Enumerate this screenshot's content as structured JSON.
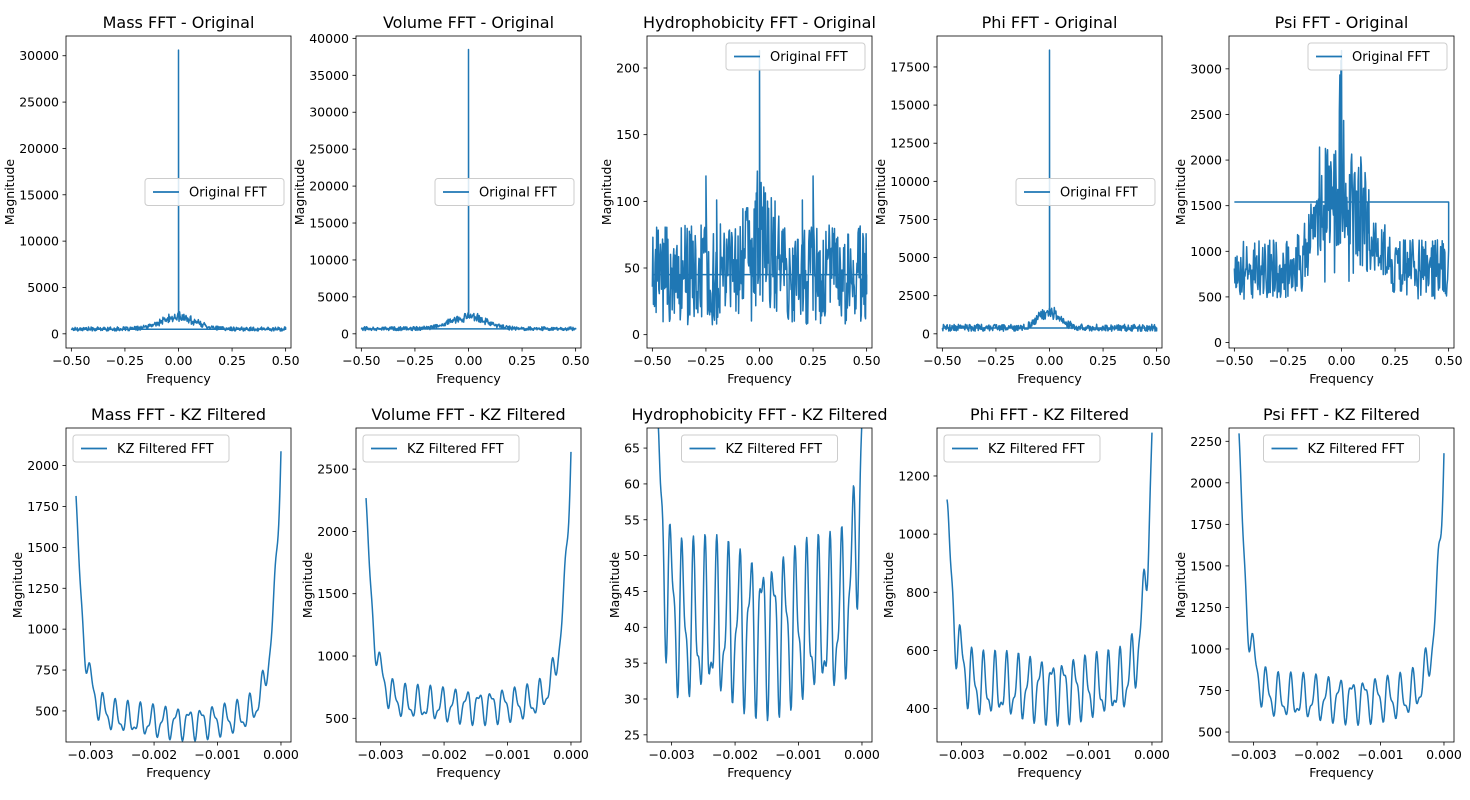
{
  "chart_data": [
    {
      "type": "line",
      "title": "Mass FFT - Original",
      "xlabel": "Frequency",
      "ylabel": "Magnitude",
      "xlim": [
        -0.525,
        0.525
      ],
      "ylim": [
        -1530,
        32130
      ],
      "xticks": [
        -0.5,
        -0.25,
        0.0,
        0.25,
        0.5
      ],
      "xtick_labels": [
        "−0.50",
        "−0.25",
        "0.00",
        "0.25",
        "0.50"
      ],
      "yticks": [
        0,
        5000,
        10000,
        15000,
        20000,
        25000,
        30000
      ],
      "ytick_labels": [
        "0",
        "5000",
        "10000",
        "15000",
        "20000",
        "25000",
        "30000"
      ],
      "legend": {
        "entries": [
          "Original FFT"
        ],
        "position": "center-right"
      },
      "series": [
        {
          "name": "Original FFT",
          "color": "#1f77b4",
          "generator": "fft-spike",
          "params": {
            "dc": 30600,
            "base": 520,
            "noise": 220,
            "bumpAmp": 1700,
            "bumpWidth": 0.08,
            "spikes": []
          }
        }
      ]
    },
    {
      "type": "line",
      "title": "Volume FFT - Original",
      "xlabel": "Frequency",
      "ylabel": "Magnitude",
      "xlim": [
        -0.525,
        0.525
      ],
      "ylim": [
        -1920,
        40320
      ],
      "xticks": [
        -0.5,
        -0.25,
        0.0,
        0.25,
        0.5
      ],
      "xtick_labels": [
        "−0.50",
        "−0.25",
        "0.00",
        "0.25",
        "0.50"
      ],
      "yticks": [
        0,
        5000,
        10000,
        15000,
        20000,
        25000,
        30000,
        35000,
        40000
      ],
      "ytick_labels": [
        "0",
        "5000",
        "10000",
        "15000",
        "20000",
        "25000",
        "30000",
        "35000",
        "40000"
      ],
      "legend": {
        "entries": [
          "Original FFT"
        ],
        "position": "center-right"
      },
      "series": [
        {
          "name": "Original FFT",
          "color": "#1f77b4",
          "generator": "fft-spike",
          "params": {
            "dc": 38500,
            "base": 700,
            "noise": 260,
            "bumpAmp": 2200,
            "bumpWidth": 0.08,
            "spikes": []
          }
        }
      ]
    },
    {
      "type": "line",
      "title": "Hydrophobicity FFT - Original",
      "xlabel": "Frequency",
      "ylabel": "Magnitude",
      "xlim": [
        -0.525,
        0.525
      ],
      "ylim": [
        -10,
        224
      ],
      "xticks": [
        -0.5,
        -0.25,
        0.0,
        0.25,
        0.5
      ],
      "xtick_labels": [
        "−0.50",
        "−0.25",
        "0.00",
        "0.25",
        "0.50"
      ],
      "yticks": [
        0,
        50,
        100,
        150,
        200
      ],
      "ytick_labels": [
        "0",
        "50",
        "100",
        "150",
        "200"
      ],
      "legend": {
        "entries": [
          "Original FFT"
        ],
        "position": "upper right"
      },
      "series": [
        {
          "name": "Original FFT",
          "color": "#1f77b4",
          "generator": "fft-noisy",
          "params": {
            "dc": 213,
            "mean": 45,
            "spread": 38,
            "min": 5,
            "max": 120,
            "bumpAmp": 30,
            "bumpWidth": 0.06,
            "spikes": [
              [
                -0.25,
                119
              ],
              [
                0.25,
                119
              ],
              [
                -0.2,
                101
              ],
              [
                0.2,
                101
              ]
            ],
            "closeLevel": 45
          }
        }
      ]
    },
    {
      "type": "line",
      "title": "Phi FFT - Original",
      "xlabel": "Frequency",
      "ylabel": "Magnitude",
      "xlim": [
        -0.525,
        0.525
      ],
      "ylim": [
        -930,
        19530
      ],
      "xticks": [
        -0.5,
        -0.25,
        0.0,
        0.25,
        0.5
      ],
      "xtick_labels": [
        "−0.50",
        "−0.25",
        "0.00",
        "0.25",
        "0.50"
      ],
      "yticks": [
        0,
        2500,
        5000,
        7500,
        10000,
        12500,
        15000,
        17500
      ],
      "ytick_labels": [
        "0",
        "2500",
        "5000",
        "7500",
        "10000",
        "12500",
        "15000",
        "17500"
      ],
      "legend": {
        "entries": [
          "Original FFT"
        ],
        "position": "center-right"
      },
      "series": [
        {
          "name": "Original FFT",
          "color": "#1f77b4",
          "generator": "fft-spike",
          "params": {
            "dc": 18600,
            "base": 400,
            "noise": 230,
            "bumpAmp": 1400,
            "bumpWidth": 0.05,
            "spikes": []
          }
        }
      ]
    },
    {
      "type": "line",
      "title": "Psi FFT - Original",
      "xlabel": "Frequency",
      "ylabel": "Magnitude",
      "xlim": [
        -0.525,
        0.525
      ],
      "ylim": [
        -60,
        3360
      ],
      "xticks": [
        -0.5,
        -0.25,
        0.0,
        0.25,
        0.5
      ],
      "xtick_labels": [
        "−0.50",
        "−0.25",
        "0.00",
        "0.25",
        "0.50"
      ],
      "yticks": [
        0,
        500,
        1000,
        1500,
        2000,
        2500,
        3000
      ],
      "ytick_labels": [
        "0",
        "500",
        "1000",
        "1500",
        "2000",
        "2500",
        "3000"
      ],
      "legend": {
        "entries": [
          "Original FFT"
        ],
        "position": "upper right"
      },
      "series": [
        {
          "name": "Original FFT",
          "color": "#1f77b4",
          "generator": "fft-noisy",
          "params": {
            "dc": 3200,
            "mean": 800,
            "spread": 330,
            "min": 60,
            "max": 2150,
            "bumpAmp": 1700,
            "bumpWidth": 0.09,
            "spikes": [],
            "closeLevel": 1540
          }
        }
      ]
    },
    {
      "type": "line",
      "title": "Mass FFT - KZ Filtered",
      "xlabel": "Frequency",
      "ylabel": "Magnitude",
      "xlim": [
        -0.003388,
        0.000158
      ],
      "ylim": [
        310,
        2230
      ],
      "xticks": [
        -0.003,
        -0.002,
        -0.001,
        0.0
      ],
      "xtick_labels": [
        "−0.003",
        "−0.002",
        "−0.001",
        "0.000"
      ],
      "yticks": [
        500,
        750,
        1000,
        1250,
        1500,
        1750,
        2000
      ],
      "ytick_labels": [
        "500",
        "750",
        "1000",
        "1250",
        "1500",
        "1750",
        "2000"
      ],
      "legend": {
        "entries": [
          "KZ Filtered FFT"
        ],
        "position": "upper left"
      },
      "series": [
        {
          "name": "KZ Filtered FFT",
          "color": "#1f77b4",
          "generator": "u-wave",
          "params": {
            "xmin": -0.00323,
            "xmax": 0.0,
            "left": 1780,
            "right": 2140,
            "floor": 490,
            "floorTilt": -60,
            "osc": 80,
            "oscFreq": 5200
          }
        }
      ]
    },
    {
      "type": "line",
      "title": "Volume FFT - KZ Filtered",
      "xlabel": "Frequency",
      "ylabel": "Magnitude",
      "xlim": [
        -0.003388,
        0.000158
      ],
      "ylim": [
        310,
        2830
      ],
      "xticks": [
        -0.003,
        -0.002,
        -0.001,
        0.0
      ],
      "xtick_labels": [
        "−0.003",
        "−0.002",
        "−0.001",
        "0.000"
      ],
      "yticks": [
        500,
        1000,
        1500,
        2000,
        2500
      ],
      "ytick_labels": [
        "500",
        "1000",
        "1500",
        "2000",
        "2500"
      ],
      "legend": {
        "entries": [
          "KZ Filtered FFT"
        ],
        "position": "upper left"
      },
      "series": [
        {
          "name": "KZ Filtered FFT",
          "color": "#1f77b4",
          "generator": "u-wave",
          "params": {
            "xmin": -0.00323,
            "xmax": 0.0,
            "left": 2220,
            "right": 2710,
            "floor": 640,
            "floorTilt": -40,
            "osc": 110,
            "oscFreq": 5200
          }
        }
      ]
    },
    {
      "type": "line",
      "title": "Hydrophobicity FFT - KZ Filtered",
      "xlabel": "Frequency",
      "ylabel": "Magnitude",
      "xlim": [
        -0.003388,
        0.000158
      ],
      "ylim": [
        24,
        67.8
      ],
      "xticks": [
        -0.003,
        -0.002,
        -0.001,
        0.0
      ],
      "xtick_labels": [
        "−0.003",
        "−0.002",
        "−0.001",
        "0.000"
      ],
      "yticks": [
        25,
        30,
        35,
        40,
        45,
        50,
        55,
        60,
        65
      ],
      "ytick_labels": [
        "25",
        "30",
        "35",
        "40",
        "45",
        "50",
        "55",
        "60",
        "65"
      ],
      "legend": {
        "entries": [
          "KZ Filtered FFT"
        ],
        "position": "upper center"
      },
      "series": [
        {
          "name": "KZ Filtered FFT",
          "color": "#1f77b4",
          "generator": "u-wave",
          "params": {
            "xmin": -0.00323,
            "xmax": 0.0,
            "left": 64,
            "right": 66,
            "floor": 40,
            "floorTilt": 0,
            "osc": 9,
            "oscFreq": 5600
          }
        }
      ]
    },
    {
      "type": "line",
      "title": "Phi FFT - KZ Filtered",
      "xlabel": "Frequency",
      "ylabel": "Magnitude",
      "xlim": [
        -0.003388,
        0.000158
      ],
      "ylim": [
        285,
        1365
      ],
      "xticks": [
        -0.003,
        -0.002,
        -0.001,
        0.0
      ],
      "xtick_labels": [
        "−0.003",
        "−0.002",
        "−0.001",
        "0.000"
      ],
      "yticks": [
        400,
        600,
        800,
        1000,
        1200
      ],
      "ytick_labels": [
        "400",
        "600",
        "800",
        "1000",
        "1200"
      ],
      "legend": {
        "entries": [
          "KZ Filtered FFT"
        ],
        "position": "upper left"
      },
      "series": [
        {
          "name": "KZ Filtered FFT",
          "color": "#1f77b4",
          "generator": "u-wave",
          "params": {
            "xmin": -0.00323,
            "xmax": 0.0,
            "left": 1080,
            "right": 1320,
            "floor": 470,
            "floorTilt": 0,
            "osc": 90,
            "oscFreq": 5600
          }
        }
      ]
    },
    {
      "type": "line",
      "title": "Psi FFT - KZ Filtered",
      "xlabel": "Frequency",
      "ylabel": "Magnitude",
      "xlim": [
        -0.003388,
        0.000158
      ],
      "ylim": [
        440,
        2330
      ],
      "xticks": [
        -0.003,
        -0.002,
        -0.001,
        0.0
      ],
      "xtick_labels": [
        "−0.003",
        "−0.002",
        "−0.001",
        "0.000"
      ],
      "yticks": [
        500,
        750,
        1000,
        1250,
        1500,
        1750,
        2000,
        2250
      ],
      "ytick_labels": [
        "500",
        "750",
        "1000",
        "1250",
        "1500",
        "1750",
        "2000",
        "2250"
      ],
      "legend": {
        "entries": [
          "KZ Filtered FFT"
        ],
        "position": "upper center"
      },
      "series": [
        {
          "name": "KZ Filtered FFT",
          "color": "#1f77b4",
          "generator": "u-wave",
          "params": {
            "xmin": -0.00323,
            "xmax": 0.0,
            "left": 2250,
            "right": 2250,
            "floor": 700,
            "floorTilt": 0,
            "osc": 110,
            "oscFreq": 5200
          }
        }
      ]
    }
  ]
}
